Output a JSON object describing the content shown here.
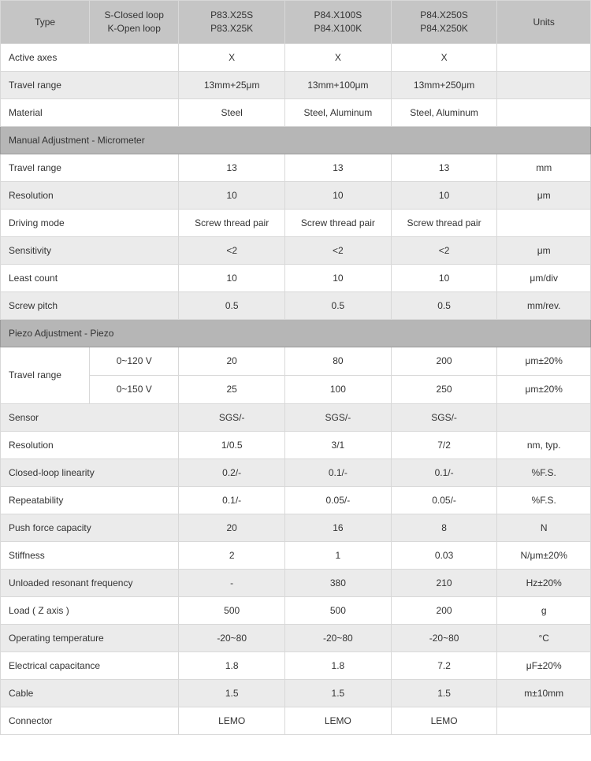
{
  "header": {
    "type": "Type",
    "loop_top": "S-Closed loop",
    "loop_bot": "K-Open loop",
    "p1_top": "P83.X25S",
    "p1_bot": "P83.X25K",
    "p2_top": "P84.X100S",
    "p2_bot": "P84.X100K",
    "p3_top": "P84.X250S",
    "p3_bot": "P84.X250K",
    "units": "Units"
  },
  "rows": {
    "active_axes": {
      "label": "Active axes",
      "p1": "X",
      "p2": "X",
      "p3": "X",
      "units": ""
    },
    "travel_range": {
      "label": "Travel range",
      "p1": "13mm+25μm",
      "p2": "13mm+100μm",
      "p3": "13mm+250μm",
      "units": ""
    },
    "material": {
      "label": "Material",
      "p1": "Steel",
      "p2": "Steel, Aluminum",
      "p3": "Steel, Aluminum",
      "units": ""
    },
    "section_manual": {
      "label": "Manual Adjustment - Micrometer"
    },
    "m_travel": {
      "label": "Travel range",
      "p1": "13",
      "p2": "13",
      "p3": "13",
      "units": "mm"
    },
    "m_resolution": {
      "label": "Resolution",
      "p1": "10",
      "p2": "10",
      "p3": "10",
      "units": "μm"
    },
    "m_driving": {
      "label": "Driving mode",
      "p1": "Screw thread pair",
      "p2": "Screw thread pair",
      "p3": "Screw thread pair",
      "units": ""
    },
    "m_sensitivity": {
      "label": "Sensitivity",
      "p1": "<2",
      "p2": "<2",
      "p3": "<2",
      "units": "μm"
    },
    "m_least": {
      "label": "Least count",
      "p1": "10",
      "p2": "10",
      "p3": "10",
      "units": "μm/div"
    },
    "m_screw": {
      "label": "Screw pitch",
      "p1": "0.5",
      "p2": "0.5",
      "p3": "0.5",
      "units": "mm/rev."
    },
    "section_piezo": {
      "label": "Piezo Adjustment - Piezo"
    },
    "p_travel_label": "Travel range",
    "p_travel_120": {
      "sub": "0~120 V",
      "p1": "20",
      "p2": "80",
      "p3": "200",
      "units": "μm±20%"
    },
    "p_travel_150": {
      "sub": "0~150 V",
      "p1": "25",
      "p2": "100",
      "p3": "250",
      "units": "μm±20%"
    },
    "p_sensor": {
      "label": "Sensor",
      "p1": "SGS/-",
      "p2": "SGS/-",
      "p3": "SGS/-",
      "units": ""
    },
    "p_resolution": {
      "label": "Resolution",
      "p1": "1/0.5",
      "p2": "3/1",
      "p3": "7/2",
      "units": "nm, typ."
    },
    "p_linearity": {
      "label": "Closed-loop linearity",
      "p1": "0.2/-",
      "p2": "0.1/-",
      "p3": "0.1/-",
      "units": "%F.S."
    },
    "p_repeat": {
      "label": "Repeatability",
      "p1": "0.1/-",
      "p2": "0.05/-",
      "p3": "0.05/-",
      "units": "%F.S."
    },
    "p_push": {
      "label": "Push force capacity",
      "p1": "20",
      "p2": "16",
      "p3": "8",
      "units": "N"
    },
    "p_stiff": {
      "label": "Stiffness",
      "p1": "2",
      "p2": "1",
      "p3": "0.03",
      "units": "N/μm±20%"
    },
    "p_resonant": {
      "label": "Unloaded resonant frequency",
      "p1": "-",
      "p2": "380",
      "p3": "210",
      "units": "Hz±20%"
    },
    "p_load": {
      "label": "Load ( Z axis )",
      "p1": "500",
      "p2": "500",
      "p3": "200",
      "units": "g"
    },
    "p_temp": {
      "label": "Operating temperature",
      "p1": "-20~80",
      "p2": "-20~80",
      "p3": "-20~80",
      "units": "°C"
    },
    "p_cap": {
      "label": "Electrical capacitance",
      "p1": "1.8",
      "p2": "1.8",
      "p3": "7.2",
      "units": "μF±20%"
    },
    "p_cable": {
      "label": "Cable",
      "p1": "1.5",
      "p2": "1.5",
      "p3": "1.5",
      "units": "m±10mm"
    },
    "p_connector": {
      "label": "Connector",
      "p1": "LEMO",
      "p2": "LEMO",
      "p3": "LEMO",
      "units": ""
    }
  }
}
